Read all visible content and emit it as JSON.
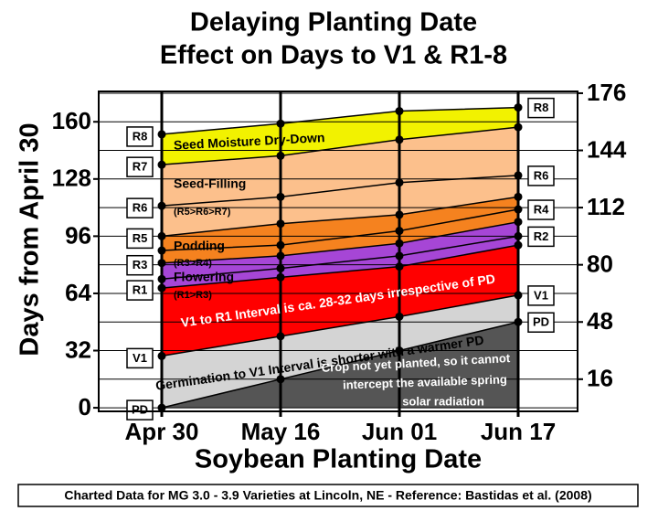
{
  "chart_data": {
    "type": "band-line",
    "title": "Delaying Planting Date",
    "subtitle": "Effect on Days to V1 & R1-8",
    "y_label": "Days from April 30",
    "x_label": "Soybean Planting Date",
    "source": "Charted Data for MG 3.0 - 3.9 Varieties at Lincoln, NE - Reference: Bastidas et al. (2008)",
    "categories": [
      "Apr 30",
      "May 16",
      "Jun 01",
      "Jun 17"
    ],
    "ylim": [
      -2,
      177
    ],
    "yticks": [
      0,
      32,
      64,
      96,
      128,
      160
    ],
    "y2lim": [
      -2,
      177
    ],
    "y2ticks": [
      16,
      48,
      80,
      112,
      144,
      176
    ],
    "grid": true,
    "series": [
      {
        "name": "PD",
        "color": "#555555",
        "values": [
          0,
          16,
          32,
          48
        ],
        "labels_at": [
          "left",
          "right"
        ]
      },
      {
        "name": "V1",
        "color": "#d4d4d4",
        "values": [
          29,
          40,
          51,
          63
        ],
        "labels_at": [
          "left",
          "right"
        ]
      },
      {
        "name": "R1",
        "color": "#ff0000",
        "values": [
          67,
          73,
          79,
          91
        ],
        "labels_at": [
          "left"
        ]
      },
      {
        "name": "R2",
        "color": "#a646d6",
        "values": [
          72,
          78,
          85,
          96
        ],
        "labels_at": [
          "right"
        ]
      },
      {
        "name": "R3",
        "color": "#a646d6",
        "values": [
          81,
          85,
          92,
          104
        ],
        "labels_at": [
          "left"
        ]
      },
      {
        "name": "R4",
        "color": "#f5821f",
        "values": [
          88,
          91,
          99,
          111
        ],
        "labels_at": [
          "right"
        ]
      },
      {
        "name": "R5",
        "color": "#f5821f",
        "values": [
          96,
          103,
          108,
          118
        ],
        "labels_at": [
          "left"
        ]
      },
      {
        "name": "R6",
        "color": "#fcc08c",
        "values": [
          113,
          118,
          126,
          130
        ],
        "labels_at": [
          "left",
          "right"
        ]
      },
      {
        "name": "R7",
        "color": "#fcc08c",
        "values": [
          136,
          141,
          150,
          157
        ],
        "labels_at": [
          "left"
        ]
      },
      {
        "name": "R8",
        "color": "#f2f200",
        "values": [
          153,
          159,
          166,
          168
        ],
        "labels_at": [
          "left",
          "right"
        ]
      }
    ],
    "annotations": [
      "Seed Moisture Dry-Down",
      "Seed-Filling",
      "(R5>R6>R7)",
      "Podding",
      "(R3>R4)",
      "Flowering",
      "(R1>R3)",
      "V1 to R1 Interval is ca. 28-32 days irrespective of PD",
      "Germination to V1 Interval is shorter with a warmer PD",
      "Crop not yet planted, so it cannot",
      "intercept the available spring",
      "solar radiation"
    ]
  }
}
